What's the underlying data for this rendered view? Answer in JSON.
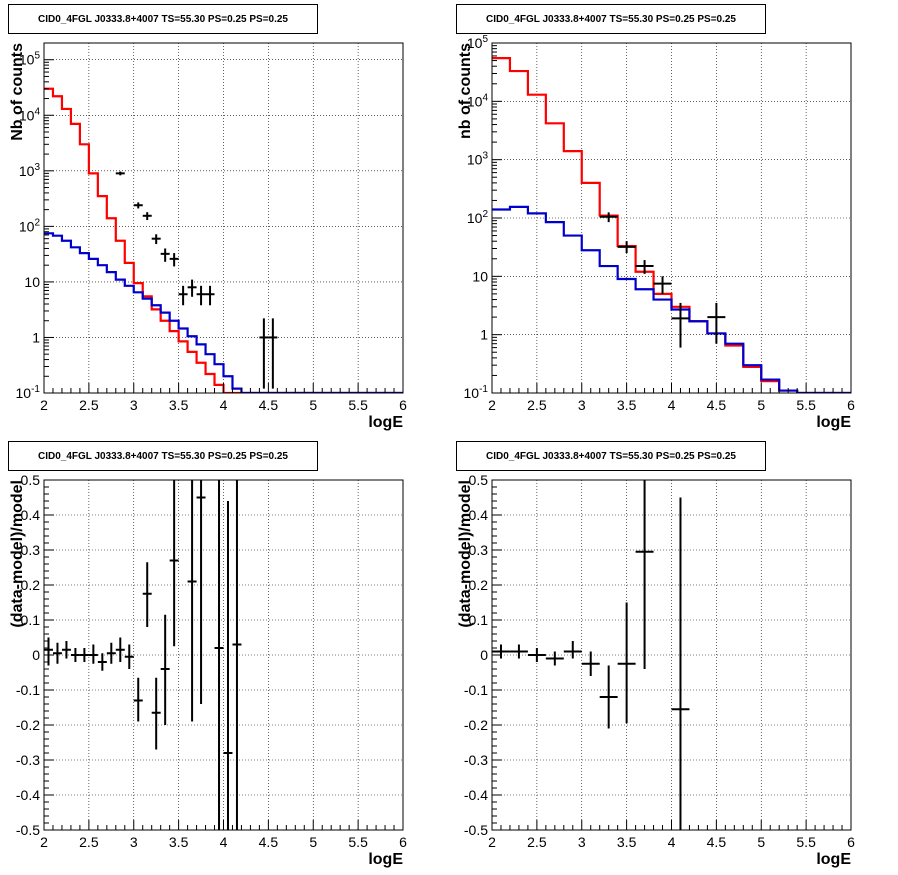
{
  "colors": {
    "data": "#000000",
    "total_model": "#ff0000",
    "component": "#0000cc",
    "frame": "#000000",
    "grid": "#000000"
  },
  "chart_data": [
    {
      "panel": "top-left",
      "type": "line",
      "title": "CID0_4FGL J0333.8+4007 TS=55.30 PS=0.25 PS=0.25",
      "xlabel": "logE",
      "ylabel": "Nb of counts",
      "xlim": [
        2,
        6
      ],
      "ylim": [
        0.1,
        200000
      ],
      "yscale": "log",
      "grid": true,
      "xticks": [
        "2",
        "2.5",
        "3",
        "3.5",
        "4",
        "4.5",
        "5",
        "5.5",
        "6"
      ],
      "yticks": [
        "10^-1",
        "1",
        "10",
        "10^2",
        "10^3",
        "10^4",
        "10^5"
      ],
      "bin_edges": [
        2.0,
        2.1,
        2.2,
        2.3,
        2.4,
        2.5,
        2.6,
        2.7,
        2.8,
        2.9,
        3.0,
        3.1,
        3.2,
        3.3,
        3.4,
        3.5,
        3.6,
        3.7,
        3.8,
        3.9,
        4.0,
        4.1,
        4.2,
        4.3,
        4.4,
        4.5,
        4.6,
        4.7,
        4.8,
        4.9,
        5.0,
        5.1,
        5.2,
        5.3,
        5.4,
        5.5,
        5.6,
        5.7,
        5.8,
        5.9,
        6.0
      ],
      "series": [
        {
          "name": "",
          "color": "#ff0000",
          "kind": "step",
          "values": [
            30000,
            22000,
            13000,
            7000,
            3000,
            900,
            350,
            140,
            55,
            22,
            9.5,
            5.5,
            3.2,
            2.0,
            1.3,
            0.85,
            0.55,
            0.35,
            0.22,
            0.14,
            0.1,
            0.1,
            0.1,
            0.1,
            0.1,
            0.1,
            0.1,
            0.1,
            0.1,
            0.1,
            0.1,
            0.1,
            0.1,
            0.1,
            0.1,
            0.1,
            0.1,
            0.1,
            0.1,
            0.1
          ]
        },
        {
          "name": "",
          "color": "#0000cc",
          "kind": "step",
          "values": [
            75,
            68,
            55,
            42,
            33,
            26,
            20,
            15,
            11,
            8.5,
            6.5,
            5.0,
            3.8,
            2.8,
            2.0,
            1.45,
            1.05,
            0.75,
            0.5,
            0.33,
            0.2,
            0.12,
            0.1,
            0.1,
            0.1,
            0.1,
            0.1,
            0.1,
            0.1,
            0.1,
            0.1,
            0.1,
            0.1,
            0.1,
            0.1,
            0.1,
            0.1,
            0.1,
            0.1,
            0.1
          ]
        },
        {
          "name": "",
          "color": "#000000",
          "kind": "points",
          "x": [
            2.85,
            3.05,
            3.15,
            3.25,
            3.35,
            3.45,
            3.55,
            3.65,
            3.75,
            3.85,
            4.45,
            4.55
          ],
          "xerr": [
            0.05,
            0.05,
            0.05,
            0.05,
            0.05,
            0.05,
            0.05,
            0.05,
            0.05,
            0.05,
            0.05,
            0.05
          ],
          "y": [
            900,
            240,
            155,
            60,
            32,
            26,
            6,
            8,
            6,
            6,
            1,
            1
          ],
          "ylo": [
            830,
            210,
            130,
            48,
            23,
            19,
            3.8,
            5.4,
            3.8,
            3.8,
            0.12,
            0.12
          ],
          "yhi": [
            970,
            270,
            180,
            72,
            40,
            33,
            8.5,
            11,
            8.5,
            8.5,
            2.2,
            2.2
          ]
        }
      ]
    },
    {
      "panel": "top-right",
      "type": "line",
      "title": "CID0_4FGL J0333.8+4007 TS=55.30 PS=0.25 PS=0.25",
      "xlabel": "logE",
      "ylabel": "nb of counts",
      "xlim": [
        2,
        6
      ],
      "ylim": [
        0.1,
        100000
      ],
      "yscale": "log",
      "grid": true,
      "xticks": [
        "2",
        "2.5",
        "3",
        "3.5",
        "4",
        "4.5",
        "5",
        "5.5",
        "6"
      ],
      "yticks": [
        "10^-1",
        "1",
        "10",
        "10^2",
        "10^3",
        "10^4",
        "10^5"
      ],
      "bin_edges": [
        2.0,
        2.2,
        2.4,
        2.6,
        2.8,
        3.0,
        3.2,
        3.4,
        3.6,
        3.8,
        4.0,
        4.2,
        4.4,
        4.6,
        4.8,
        5.0,
        5.2,
        5.4,
        5.6,
        5.8,
        6.0
      ],
      "series": [
        {
          "name": "",
          "color": "#ff0000",
          "kind": "step",
          "values": [
            55000,
            33000,
            13000,
            4200,
            1400,
            400,
            110,
            33,
            12,
            5.0,
            3.0,
            1.7,
            1.05,
            0.65,
            0.28,
            0.16,
            0.11,
            0.1,
            0.1,
            0.1
          ]
        },
        {
          "name": "",
          "color": "#0000cc",
          "kind": "step",
          "values": [
            140,
            155,
            120,
            85,
            50,
            28,
            15,
            9.0,
            6.0,
            4.0,
            2.7,
            1.7,
            1.05,
            0.7,
            0.3,
            0.17,
            0.11,
            0.1,
            0.1,
            0.1
          ]
        },
        {
          "name": "",
          "color": "#000000",
          "kind": "points",
          "x": [
            3.3,
            3.5,
            3.7,
            3.9,
            4.1,
            4.5
          ],
          "xerr": [
            0.1,
            0.1,
            0.1,
            0.1,
            0.1,
            0.1
          ],
          "y": [
            105,
            32,
            15,
            7.5,
            1.9,
            2.0
          ],
          "ylo": [
            85,
            25,
            11,
            5.0,
            0.6,
            0.7
          ],
          "yhi": [
            125,
            40,
            19,
            10,
            3.5,
            3.5
          ]
        }
      ]
    },
    {
      "panel": "bottom-left",
      "type": "scatter",
      "title": "CID0_4FGL J0333.8+4007 TS=55.30 PS=0.25 PS=0.25",
      "xlabel": "logE",
      "ylabel": "(data-model)/model",
      "xlim": [
        2,
        6
      ],
      "ylim": [
        -0.5,
        0.5
      ],
      "grid": true,
      "xticks": [
        "2",
        "2.5",
        "3",
        "3.5",
        "4",
        "4.5",
        "5",
        "5.5",
        "6"
      ],
      "yticks": [
        "-0.5",
        "-0.4",
        "-0.3",
        "-0.2",
        "-0.1",
        "0",
        "0.1",
        "0.2",
        "0.3",
        "0.4",
        "0.5"
      ],
      "series": [
        {
          "name": "",
          "color": "#000000",
          "kind": "points",
          "x": [
            2.05,
            2.15,
            2.25,
            2.35,
            2.45,
            2.55,
            2.65,
            2.75,
            2.85,
            2.95,
            3.05,
            3.15,
            3.25,
            3.35,
            3.45,
            3.65,
            3.75,
            3.95,
            4.05,
            4.15
          ],
          "xerr": [
            0.05,
            0.05,
            0.05,
            0.05,
            0.05,
            0.05,
            0.05,
            0.05,
            0.05,
            0.05,
            0.05,
            0.05,
            0.05,
            0.05,
            0.05,
            0.05,
            0.05,
            0.05,
            0.05,
            0.05
          ],
          "y": [
            0.015,
            0.005,
            0.015,
            0.0,
            0.0,
            0.0,
            -0.02,
            0.005,
            0.015,
            -0.005,
            -0.13,
            0.175,
            -0.165,
            -0.04,
            0.27,
            0.21,
            0.45,
            0.02,
            -0.28,
            0.03
          ],
          "ylo": [
            -0.03,
            -0.025,
            -0.01,
            -0.02,
            -0.02,
            -0.025,
            -0.045,
            -0.025,
            -0.02,
            -0.04,
            -0.19,
            0.08,
            -0.27,
            -0.2,
            0.025,
            -0.19,
            -0.14,
            -0.5,
            -0.5,
            -0.5
          ],
          "yhi": [
            0.05,
            0.035,
            0.04,
            0.02,
            0.02,
            0.03,
            0.005,
            0.035,
            0.05,
            0.03,
            -0.065,
            0.265,
            -0.065,
            0.115,
            0.5,
            0.5,
            0.5,
            0.5,
            0.44,
            0.5
          ]
        }
      ]
    },
    {
      "panel": "bottom-right",
      "type": "scatter",
      "title": "CID0_4FGL J0333.8+4007 TS=55.30 PS=0.25 PS=0.25",
      "xlabel": "logE",
      "ylabel": "(data-model)/model",
      "xlim": [
        2,
        6
      ],
      "ylim": [
        -0.5,
        0.5
      ],
      "grid": true,
      "xticks": [
        "2",
        "2.5",
        "3",
        "3.5",
        "4",
        "4.5",
        "5",
        "5.5",
        "6"
      ],
      "yticks": [
        "-0.5",
        "-0.4",
        "-0.3",
        "-0.2",
        "-0.1",
        "0",
        "0.1",
        "0.2",
        "0.3",
        "0.4",
        "0.5"
      ],
      "series": [
        {
          "name": "",
          "color": "#000000",
          "kind": "points",
          "x": [
            2.1,
            2.3,
            2.5,
            2.7,
            2.9,
            3.1,
            3.3,
            3.5,
            3.7,
            4.1
          ],
          "xerr": [
            0.1,
            0.1,
            0.1,
            0.1,
            0.1,
            0.1,
            0.1,
            0.1,
            0.1,
            0.1
          ],
          "y": [
            0.01,
            0.01,
            0.0,
            -0.01,
            0.01,
            -0.025,
            -0.12,
            -0.025,
            0.295,
            -0.155
          ],
          "ylo": [
            -0.01,
            -0.01,
            -0.02,
            -0.03,
            -0.01,
            -0.06,
            -0.21,
            -0.195,
            -0.04,
            -0.5
          ],
          "yhi": [
            0.03,
            0.03,
            0.02,
            0.01,
            0.04,
            0.01,
            -0.03,
            0.15,
            0.5,
            0.45
          ]
        }
      ]
    }
  ]
}
